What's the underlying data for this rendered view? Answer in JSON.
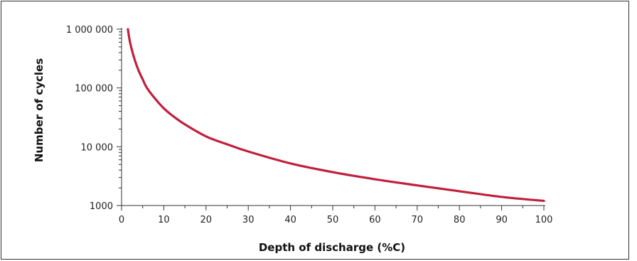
{
  "chart_data": {
    "type": "line",
    "title": "",
    "xlabel": "Depth of discharge (%C)",
    "ylabel": "Number of cycles",
    "xlim": [
      0,
      100
    ],
    "ylim": [
      1000,
      1000000
    ],
    "yscale": "log",
    "grid": false,
    "legend": "none",
    "x_ticks": [
      0,
      10,
      20,
      30,
      40,
      50,
      60,
      70,
      80,
      90,
      100
    ],
    "x_tick_labels": [
      "0",
      "10",
      "20",
      "30",
      "40",
      "50",
      "60",
      "70",
      "80",
      "90",
      "100"
    ],
    "y_ticks": [
      1000,
      10000,
      100000,
      1000000
    ],
    "y_tick_labels": [
      "1000",
      "10 000",
      "100 000",
      "1 000 000"
    ],
    "series": [
      {
        "color": "#c0203c",
        "x": [
          1.5,
          2,
          3,
          4,
          5,
          6,
          8,
          10,
          12,
          15,
          20,
          25,
          30,
          40,
          50,
          60,
          70,
          80,
          90,
          100
        ],
        "y": [
          1000000,
          600000,
          320000,
          200000,
          140000,
          100000,
          65000,
          45000,
          34000,
          24000,
          15000,
          11000,
          8300,
          5200,
          3700,
          2800,
          2200,
          1750,
          1400,
          1200
        ]
      }
    ]
  }
}
